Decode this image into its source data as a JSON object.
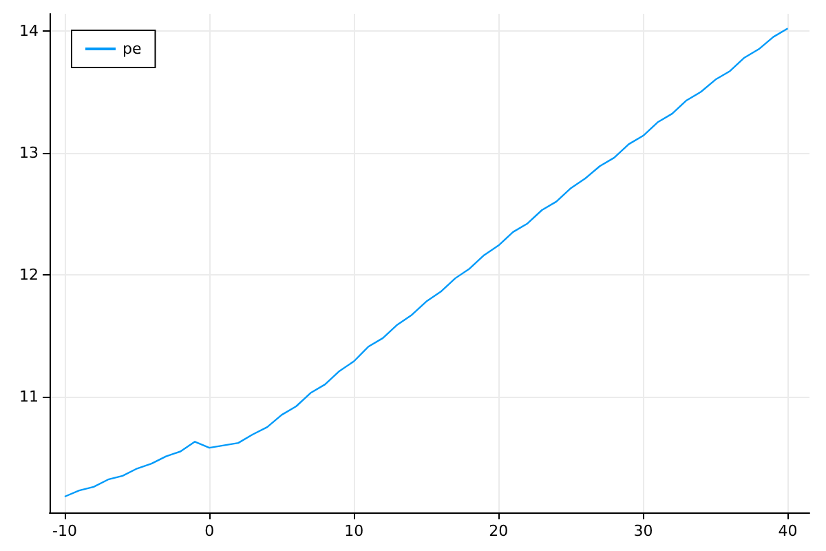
{
  "chart_data": {
    "type": "line",
    "x": [
      -10,
      -9,
      -8,
      -7,
      -6,
      -5,
      -4,
      -3,
      -2,
      -1,
      0,
      1,
      2,
      3,
      4,
      5,
      6,
      7,
      8,
      9,
      10,
      11,
      12,
      13,
      14,
      15,
      16,
      17,
      18,
      19,
      20,
      21,
      22,
      23,
      24,
      25,
      26,
      27,
      28,
      29,
      30,
      31,
      32,
      33,
      34,
      35,
      36,
      37,
      38,
      39,
      40
    ],
    "series": [
      {
        "name": "pe",
        "color": "#009af9",
        "values": [
          10.18,
          10.23,
          10.26,
          10.32,
          10.35,
          10.41,
          10.45,
          10.51,
          10.55,
          10.63,
          10.58,
          10.6,
          10.62,
          10.69,
          10.75,
          10.85,
          10.92,
          11.03,
          11.1,
          11.21,
          11.29,
          11.41,
          11.48,
          11.59,
          11.67,
          11.78,
          11.86,
          11.97,
          12.05,
          12.16,
          12.24,
          12.35,
          12.42,
          12.53,
          12.6,
          12.71,
          12.79,
          12.89,
          12.96,
          13.07,
          13.14,
          13.25,
          13.32,
          13.43,
          13.5,
          13.6,
          13.67,
          13.78,
          13.85,
          13.95,
          14.02
        ]
      }
    ],
    "xlim": [
      -11.05,
      41.5
    ],
    "xticks": [
      -10,
      0,
      10,
      20,
      30,
      40
    ],
    "ylim": [
      10.05,
      14.14
    ],
    "yticks": [
      11,
      12,
      13,
      14
    ],
    "grid": true,
    "legend": "top left",
    "marker": "none",
    "line_style": "solid"
  }
}
